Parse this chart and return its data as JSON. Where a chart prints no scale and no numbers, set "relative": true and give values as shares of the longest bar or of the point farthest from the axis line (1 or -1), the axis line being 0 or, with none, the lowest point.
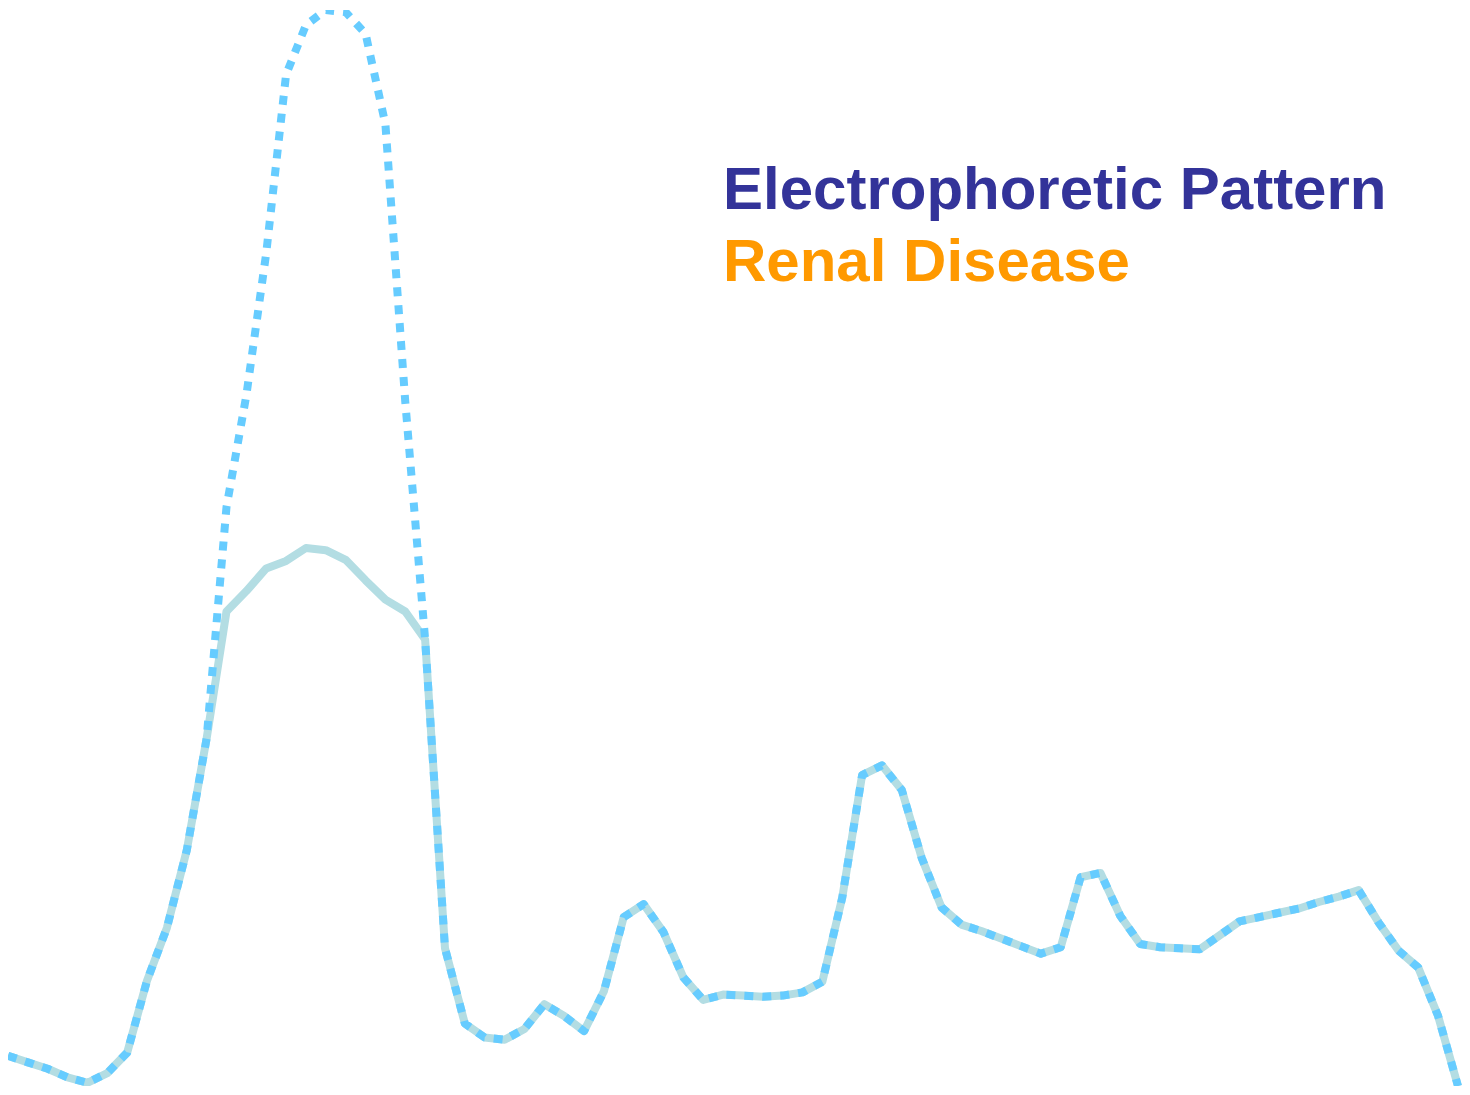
{
  "chart_data": {
    "type": "line",
    "title": "Electrophoretic Pattern",
    "subtitle": "Renal Disease",
    "relative": true,
    "grid": false,
    "legend": false,
    "marker": "none",
    "categories": [
      null,
      null,
      null,
      null,
      null,
      null,
      null,
      null,
      null,
      null,
      null,
      null,
      null,
      null,
      null,
      null,
      null,
      null,
      null,
      null,
      null,
      null,
      null,
      null,
      null,
      null,
      null,
      null,
      null,
      null,
      null,
      null,
      null,
      null,
      null,
      null,
      null,
      null,
      null,
      null,
      null,
      null,
      null,
      null,
      null,
      null,
      null,
      null,
      null,
      null,
      null,
      null,
      null,
      null,
      null,
      null,
      null,
      null,
      null,
      null,
      null,
      null,
      null,
      null,
      null,
      null,
      null,
      null,
      null,
      null,
      null,
      null,
      null,
      null
    ],
    "series": [
      {
        "color": "#b3dde3",
        "line_style": "solid",
        "values": [
          0.028,
          0.022,
          0.016,
          0.008,
          0.003,
          0.012,
          0.031,
          0.098,
          0.147,
          0.219,
          0.323,
          0.441,
          0.46,
          0.481,
          0.488,
          0.5,
          0.498,
          0.489,
          0.47,
          0.452,
          0.441,
          0.415,
          0.128,
          0.058,
          0.045,
          0.043,
          0.053,
          0.076,
          0.065,
          0.051,
          0.088,
          0.157,
          0.169,
          0.143,
          0.101,
          0.08,
          0.085,
          0.084,
          0.083,
          0.084,
          0.087,
          0.097,
          0.175,
          0.289,
          0.298,
          0.275,
          0.212,
          0.166,
          0.15,
          0.144,
          0.137,
          0.13,
          0.123,
          0.129,
          0.194,
          0.198,
          0.158,
          0.132,
          0.129,
          0.128,
          0.127,
          0.14,
          0.153,
          0.157,
          0.161,
          0.165,
          0.171,
          0.176,
          0.182,
          0.152,
          0.126,
          0.11,
          0.065,
          0
        ]
      },
      {
        "color": "#66ccff",
        "line_style": "dotted",
        "values": [
          0.028,
          0.022,
          0.016,
          0.008,
          0.003,
          0.012,
          0.031,
          0.098,
          0.147,
          0.219,
          0.323,
          0.538,
          0.642,
          0.774,
          0.94,
          0.986,
          1,
          0.998,
          0.978,
          0.894,
          0.636,
          0.415,
          0.128,
          0.058,
          0.045,
          0.043,
          0.053,
          0.076,
          0.065,
          0.051,
          0.088,
          0.157,
          0.169,
          0.143,
          0.101,
          0.08,
          0.085,
          0.084,
          0.083,
          0.084,
          0.087,
          0.097,
          0.175,
          0.289,
          0.298,
          0.275,
          0.212,
          0.166,
          0.15,
          0.144,
          0.137,
          0.13,
          0.123,
          0.129,
          0.194,
          0.198,
          0.158,
          0.132,
          0.129,
          0.128,
          0.127,
          0.14,
          0.153,
          0.157,
          0.161,
          0.165,
          0.171,
          0.176,
          0.182,
          0.152,
          0.126,
          0.11,
          0.065,
          0
        ]
      }
    ]
  }
}
